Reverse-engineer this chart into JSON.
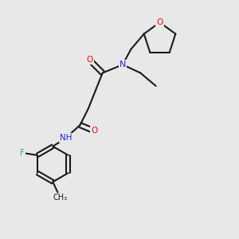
{
  "bg_color": "#e8e8e8",
  "bond_color": "#1a1a1a",
  "bond_width": 1.5,
  "atom_colors": {
    "O": "#ff0000",
    "N": "#2020ff",
    "F": "#20aaaa",
    "C": "#1a1a1a",
    "H": "#808080"
  },
  "figsize": [
    3.0,
    3.0
  ],
  "dpi": 100
}
